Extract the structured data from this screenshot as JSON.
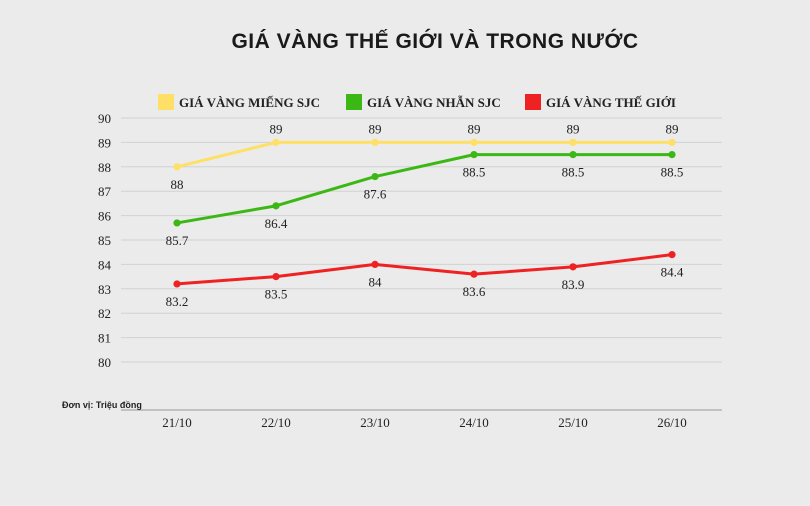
{
  "chart_data": {
    "type": "line",
    "title": "GIÁ VÀNG THẾ GIỚI VÀ TRONG NƯỚC",
    "unit_note": "Đơn vị: Triệu đồng",
    "categories": [
      "21/10",
      "22/10",
      "23/10",
      "24/10",
      "25/10",
      "26/10"
    ],
    "y_ticks": [
      "80",
      "81",
      "82",
      "83",
      "84",
      "85",
      "86",
      "87",
      "88",
      "89",
      "90"
    ],
    "ylim": [
      80,
      90
    ],
    "grid": true,
    "legend_position": "top",
    "series": [
      {
        "name": "GIÁ VÀNG MIẾNG SJC",
        "color": "#ffe066",
        "values": [
          88,
          89,
          89,
          89,
          89,
          89
        ],
        "labels": [
          "88",
          "89",
          "89",
          "89",
          "89",
          "89"
        ],
        "label_side": [
          "below",
          "above",
          "above",
          "above",
          "above",
          "above"
        ]
      },
      {
        "name": "GIÁ VÀNG NHẪN SJC",
        "color": "#3cb815",
        "values": [
          85.7,
          86.4,
          87.6,
          88.5,
          88.5,
          88.5
        ],
        "labels": [
          "85.7",
          "86.4",
          "87.6",
          "88.5",
          "88.5",
          "88.5"
        ],
        "label_side": [
          "below",
          "below",
          "below",
          "below",
          "below",
          "below"
        ]
      },
      {
        "name": "GIÁ VÀNG THẾ GIỚI",
        "color": "#ee2222",
        "values": [
          83.2,
          83.5,
          84,
          83.6,
          83.9,
          84.4
        ],
        "labels": [
          "83.2",
          "83.5",
          "84",
          "83.6",
          "83.9",
          "84.4"
        ],
        "label_side": [
          "below",
          "below",
          "below",
          "below",
          "below",
          "below"
        ]
      }
    ]
  }
}
